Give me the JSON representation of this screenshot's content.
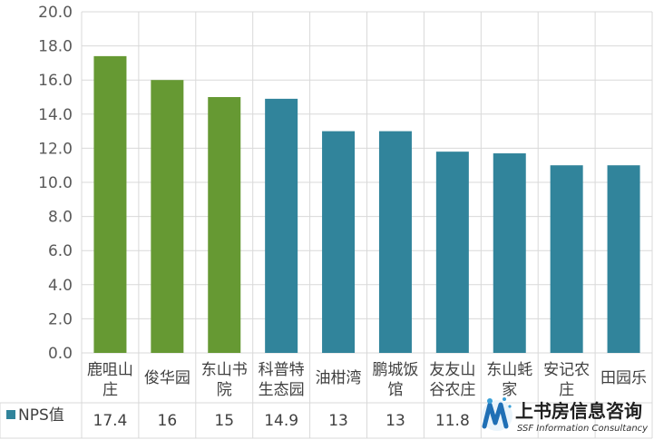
{
  "chart_data": {
    "type": "bar",
    "ylim": [
      0,
      20
    ],
    "y_ticks": [
      "0.0",
      "2.0",
      "4.0",
      "6.0",
      "8.0",
      "10.0",
      "12.0",
      "14.0",
      "16.0",
      "18.0",
      "20.0"
    ],
    "grid": true,
    "categories": [
      [
        "鹿咀山",
        "庄"
      ],
      [
        "俊华园"
      ],
      [
        "东山书",
        "院"
      ],
      [
        "科普特",
        "生态园"
      ],
      [
        "油柑湾"
      ],
      [
        "鹏城饭",
        "馆"
      ],
      [
        "友友山",
        "谷农庄"
      ],
      [
        "东山蚝",
        "家"
      ],
      [
        "安记农",
        "庄"
      ],
      [
        "田园乐"
      ]
    ],
    "series": [
      {
        "name": "NPS值",
        "values": [
          17.4,
          16,
          15,
          14.9,
          13,
          13,
          11.8,
          11.7,
          11,
          11
        ],
        "value_labels": [
          "17.4",
          "16",
          "15",
          "14.9",
          "13",
          "13",
          "11.8",
          "",
          "",
          ""
        ],
        "colors": [
          "#669933",
          "#669933",
          "#669933",
          "#31849b",
          "#31849b",
          "#31849b",
          "#31849b",
          "#31849b",
          "#31849b",
          "#31849b"
        ]
      }
    ],
    "legend_key_color": "#31849b",
    "grid_color": "#d9d9d9"
  },
  "watermark": {
    "title": "上书房信息咨询",
    "subtitle": "SSF Information Consultancy",
    "icon": "ssf-logo-icon",
    "colors": {
      "primary": "#1f6fb5",
      "accent": "#3aa0d8"
    }
  }
}
